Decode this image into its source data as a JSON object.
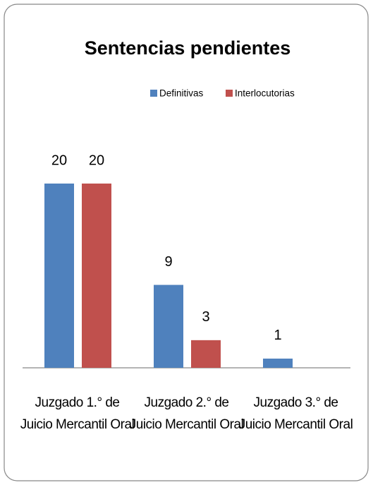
{
  "chart_data": {
    "type": "bar",
    "title": "Sentencias pendientes",
    "categories": [
      "Juzgado 1.° de Juicio Mercantil Oral",
      "Juzgado 2.° de Juicio Mercantil Oral",
      "Juzgado 3.° de Juicio Mercantil Oral"
    ],
    "series": [
      {
        "name": "Definitivas",
        "color": "#4f81bd",
        "values": [
          20,
          9,
          1
        ]
      },
      {
        "name": "Interlocutorias",
        "color": "#c0504d",
        "values": [
          20,
          3,
          null
        ]
      }
    ],
    "ylim": [
      0,
      20
    ],
    "legend": "top"
  }
}
